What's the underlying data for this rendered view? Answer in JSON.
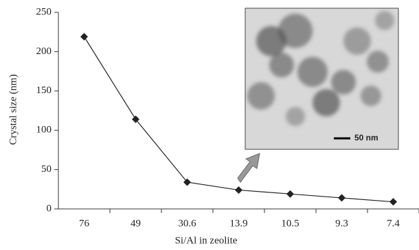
{
  "chart_data": {
    "type": "line",
    "x_label": "Si/Al in zeolite",
    "y_label": "Crystal size (nm)",
    "categories": [
      "76",
      "49",
      "30.6",
      "13.9",
      "10.5",
      "9.3",
      "7.4"
    ],
    "series": [
      {
        "name": "Crystal size",
        "color": "#222222",
        "values": [
          219,
          114,
          34,
          24,
          19,
          14,
          9
        ]
      }
    ],
    "ylim": [
      0,
      250
    ],
    "yticks": [
      0,
      50,
      100,
      150,
      200,
      250
    ],
    "inset_label": "50 nm"
  }
}
